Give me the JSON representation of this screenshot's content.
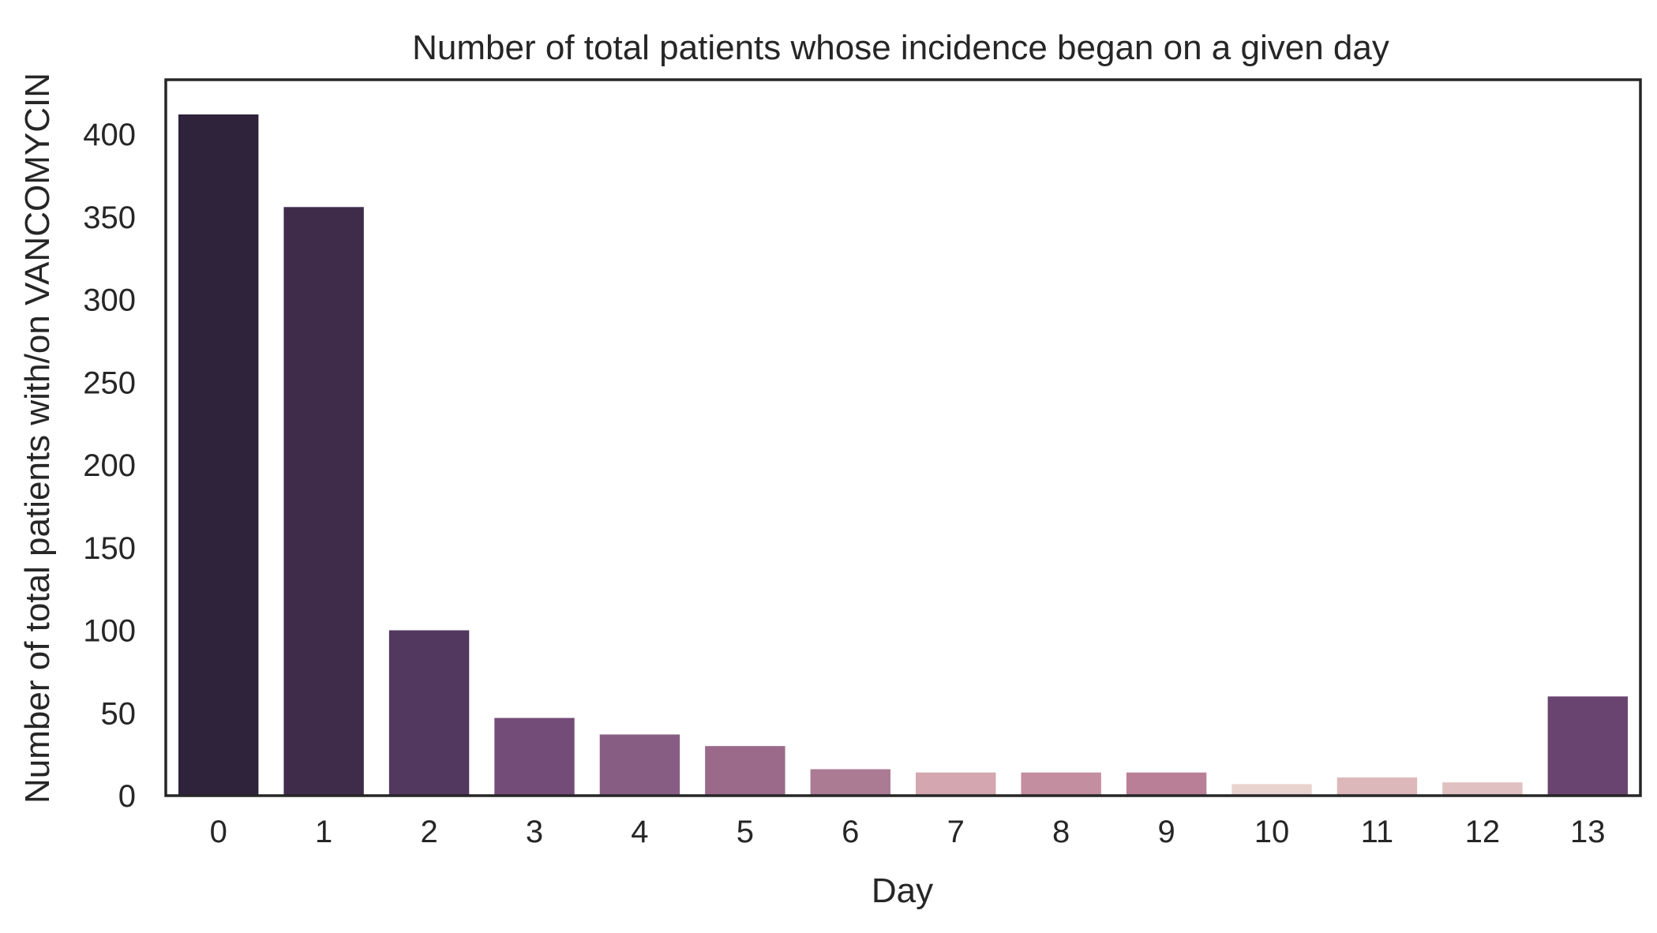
{
  "chart_data": {
    "type": "bar",
    "title": "Number of total patients whose incidence began on a given day",
    "xlabel": "Day",
    "ylabel": "Number of total patients with/on VANCOMYCIN",
    "categories": [
      "0",
      "1",
      "2",
      "3",
      "4",
      "5",
      "6",
      "7",
      "8",
      "9",
      "10",
      "11",
      "12",
      "13"
    ],
    "values": [
      412,
      356,
      100,
      47,
      37,
      30,
      16,
      14,
      14,
      14,
      7,
      11,
      8,
      60
    ],
    "ylim": [
      0,
      433
    ],
    "yticks": [
      0,
      50,
      100,
      150,
      200,
      250,
      300,
      350,
      400
    ],
    "grid": false,
    "legend": "none",
    "bar_colors": [
      "#2f223b",
      "#3f2c4a",
      "#52375e",
      "#744c78",
      "#885d83",
      "#9b6a8a",
      "#aa7b93",
      "#d4a6af",
      "#c38e9f",
      "#b97f97",
      "#ead4d0",
      "#ddb8ba",
      "#e0c0c0",
      "#6a4470"
    ]
  }
}
